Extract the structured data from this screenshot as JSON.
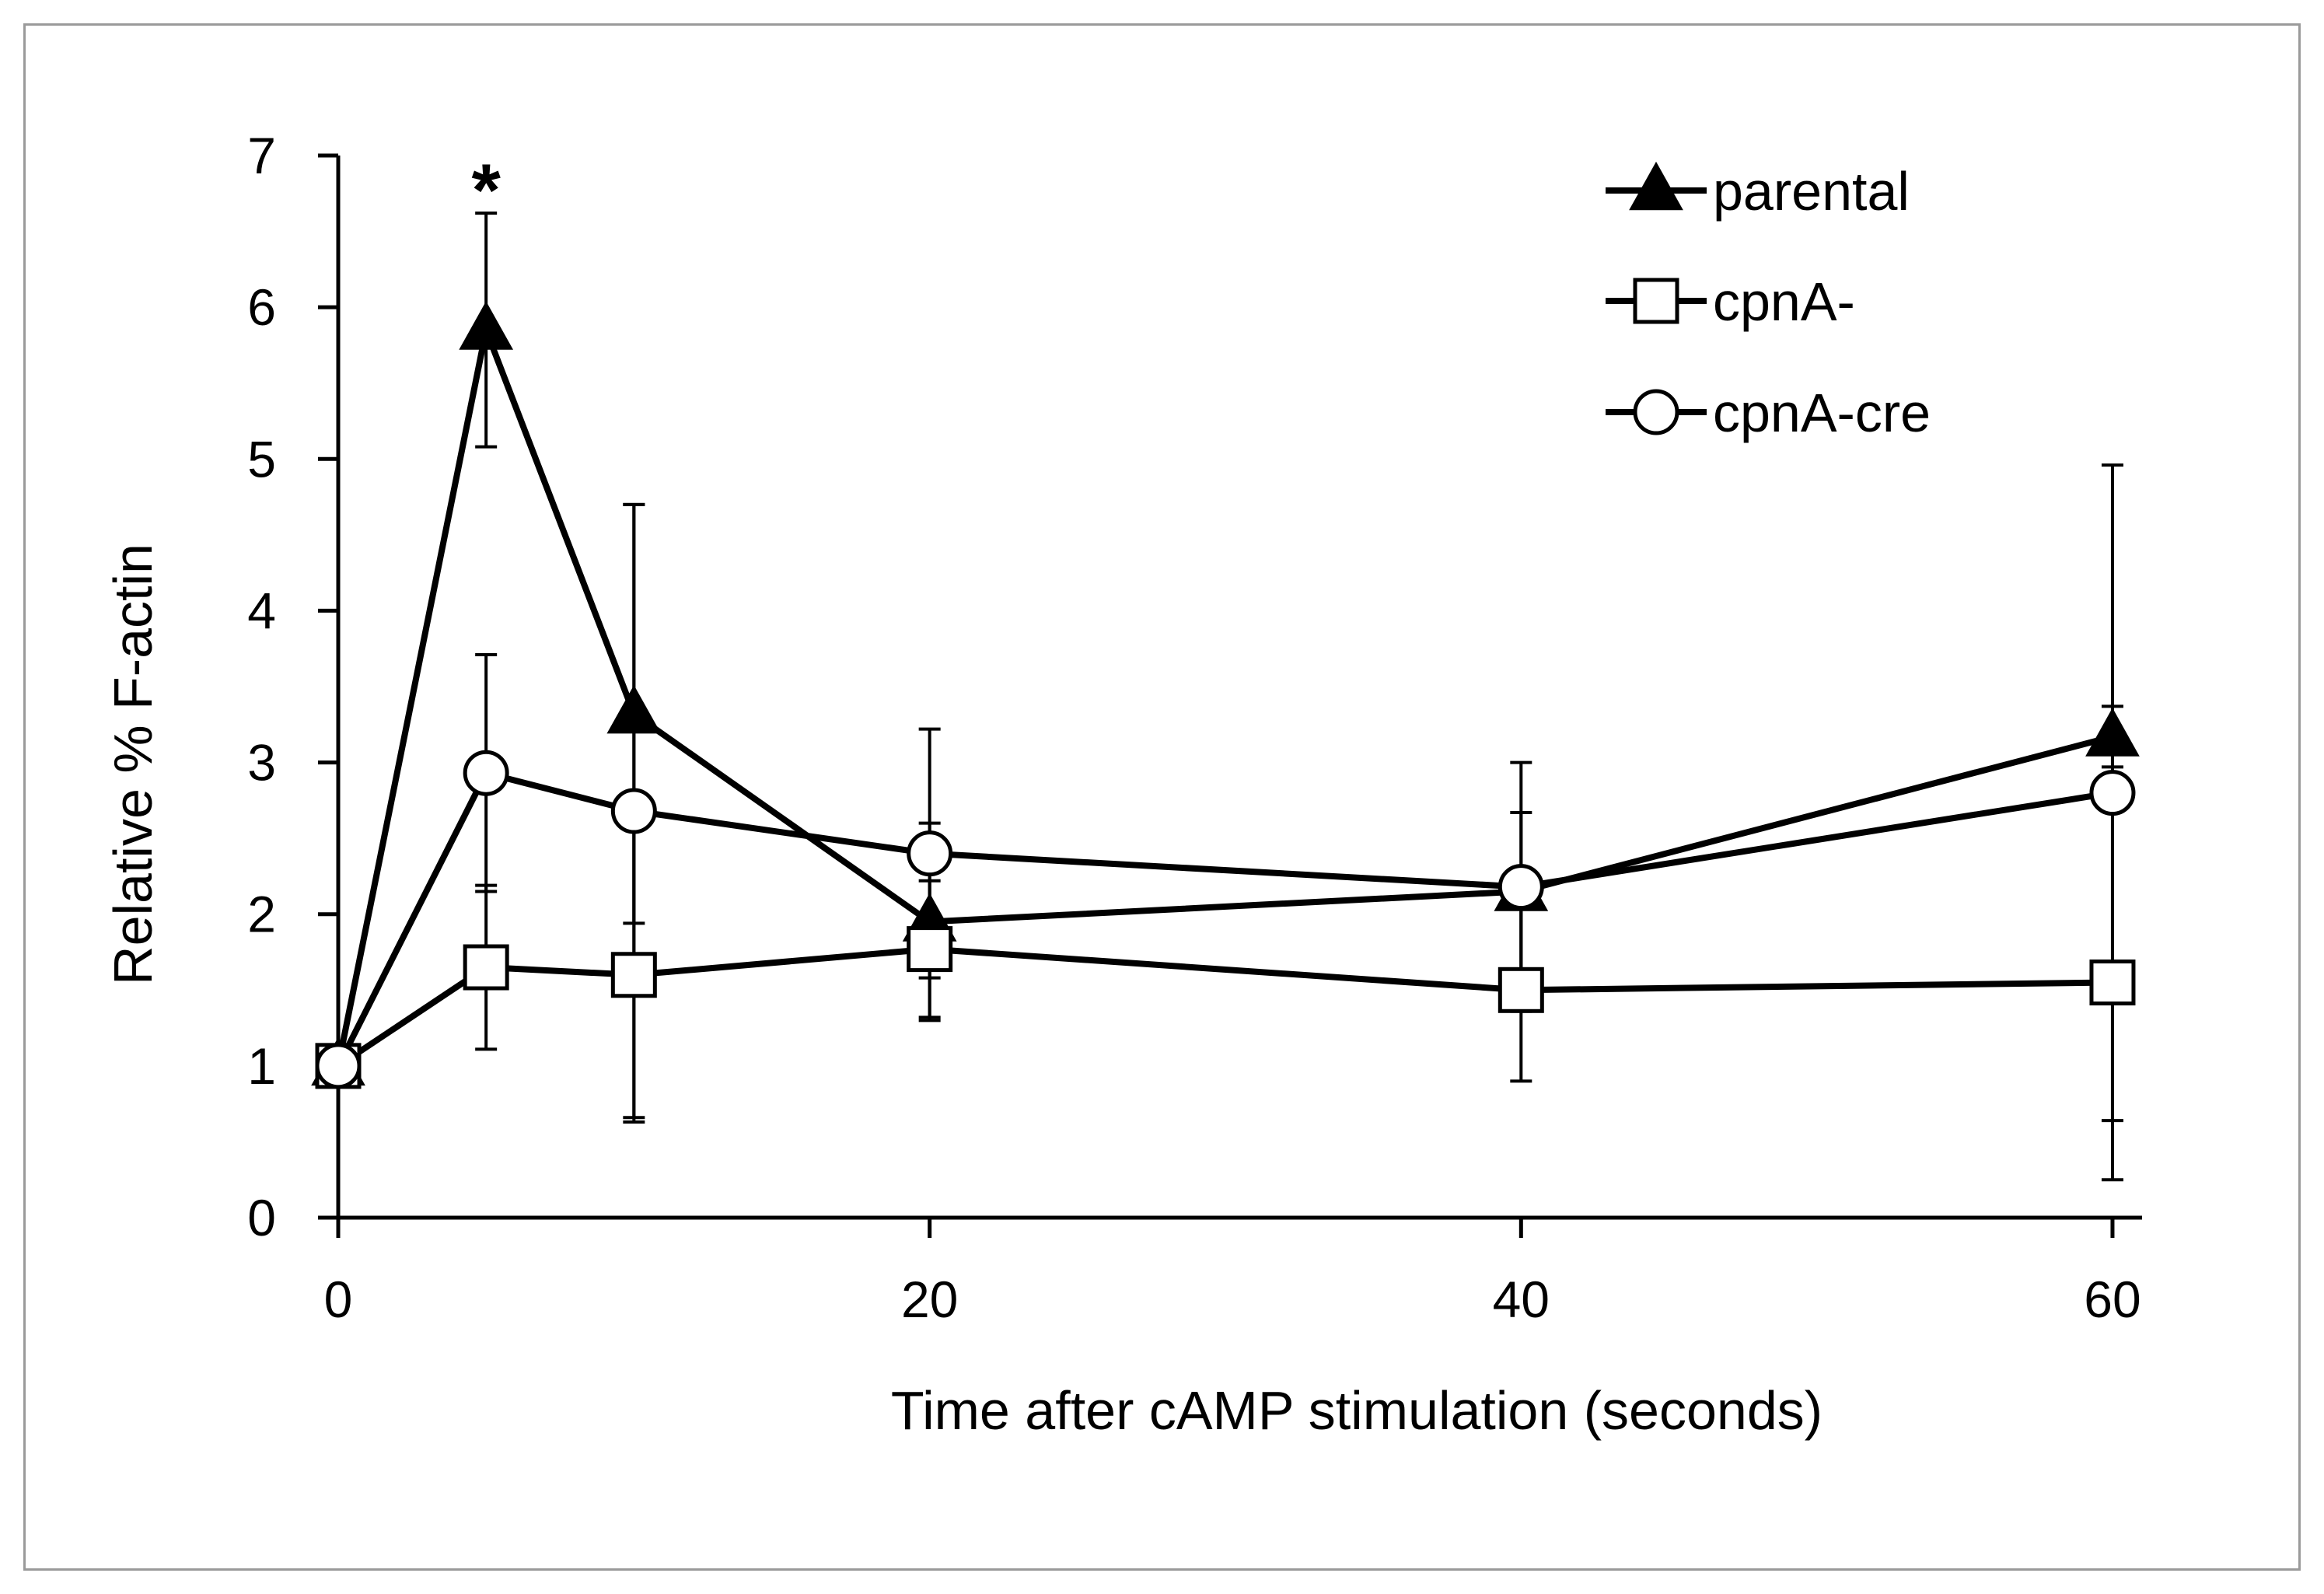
{
  "chart_data": {
    "type": "line",
    "title": "",
    "xlabel": "Time after cAMP stimulation (seconds)",
    "ylabel": "Relative % F-actin",
    "xlim": [
      0,
      61
    ],
    "ylim": [
      0,
      7
    ],
    "x_ticks": [
      0,
      20,
      40,
      60
    ],
    "y_ticks": [
      0,
      1,
      2,
      3,
      4,
      5,
      6,
      7
    ],
    "x_tick_labels": [
      "0",
      "20",
      "40",
      "60"
    ],
    "y_tick_labels": [
      "0",
      "1",
      "2",
      "3",
      "4",
      "5",
      "6",
      "7"
    ],
    "legend_position": "top-right",
    "annotation": {
      "text": "*",
      "x": 5,
      "y": 6.9
    },
    "series": [
      {
        "name": "parental",
        "marker": "filled-triangle",
        "x": [
          0,
          5,
          10,
          20,
          40,
          60
        ],
        "values": [
          1.0,
          5.85,
          3.32,
          1.95,
          2.15,
          3.17
        ],
        "error": [
          0.0,
          0.77,
          1.38,
          0.65,
          0.52,
          0.2
        ]
      },
      {
        "name": "cpnA-",
        "marker": "open-square",
        "x": [
          0,
          5,
          10,
          20,
          40,
          60
        ],
        "values": [
          1.0,
          1.65,
          1.6,
          1.77,
          1.5,
          1.55
        ],
        "error": [
          0.0,
          0.54,
          0.97,
          0.45,
          0.6,
          1.3
        ]
      },
      {
        "name": "cpnA-cre",
        "marker": "open-circle",
        "x": [
          0,
          5,
          10,
          20,
          40,
          60
        ],
        "values": [
          1.0,
          2.93,
          2.68,
          2.4,
          2.18,
          2.8
        ],
        "error": [
          0.0,
          0.78,
          2.02,
          0.82,
          0.82,
          2.16
        ]
      }
    ]
  }
}
